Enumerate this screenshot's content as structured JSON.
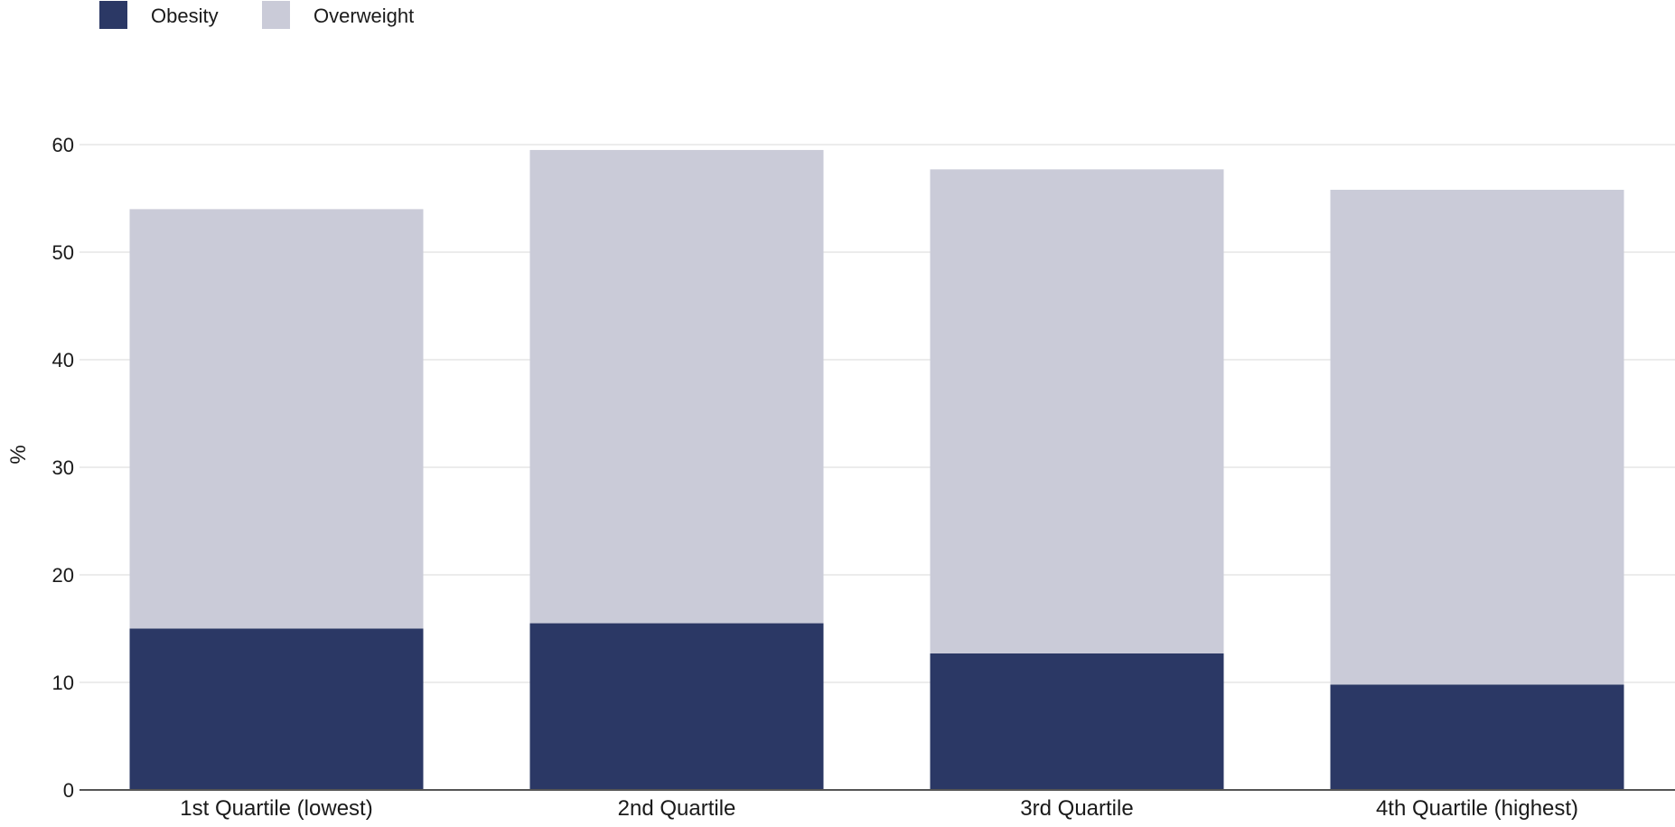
{
  "chart_data": {
    "type": "bar",
    "stacked": true,
    "categories": [
      "1st Quartile (lowest)",
      "2nd Quartile",
      "3rd Quartile",
      "4th Quartile (highest)"
    ],
    "series": [
      {
        "name": "Obesity",
        "color": "#2b3865",
        "values": [
          15.0,
          15.5,
          12.7,
          9.8
        ]
      },
      {
        "name": "Overweight",
        "color": "#cacbd8",
        "values": [
          39.0,
          44.0,
          45.0,
          46.0
        ]
      }
    ],
    "title": "",
    "xlabel": "",
    "ylabel": "%",
    "ylim": [
      0,
      60
    ],
    "yticks": [
      0,
      10,
      20,
      30,
      40,
      50,
      60
    ],
    "grid": true,
    "legend_position": "top-left"
  }
}
